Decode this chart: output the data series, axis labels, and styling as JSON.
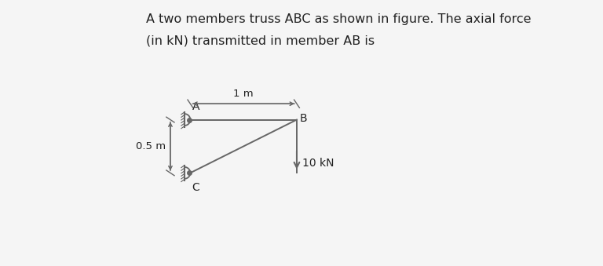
{
  "title_line1": "A two members truss ABC as shown in figure. The axial force",
  "title_line2": "(in kN) transmitted in member AB is",
  "bg_color": "#f5f5f5",
  "line_color": "#666666",
  "text_color": "#222222",
  "A": [
    1.8,
    5.5
  ],
  "B": [
    5.8,
    5.5
  ],
  "C": [
    1.8,
    3.5
  ],
  "dim_1m_label": "1 m",
  "dim_05m_label": "0.5 m",
  "force_label": "10 kN",
  "figsize": [
    7.68,
    3.39
  ],
  "dpi": 100
}
